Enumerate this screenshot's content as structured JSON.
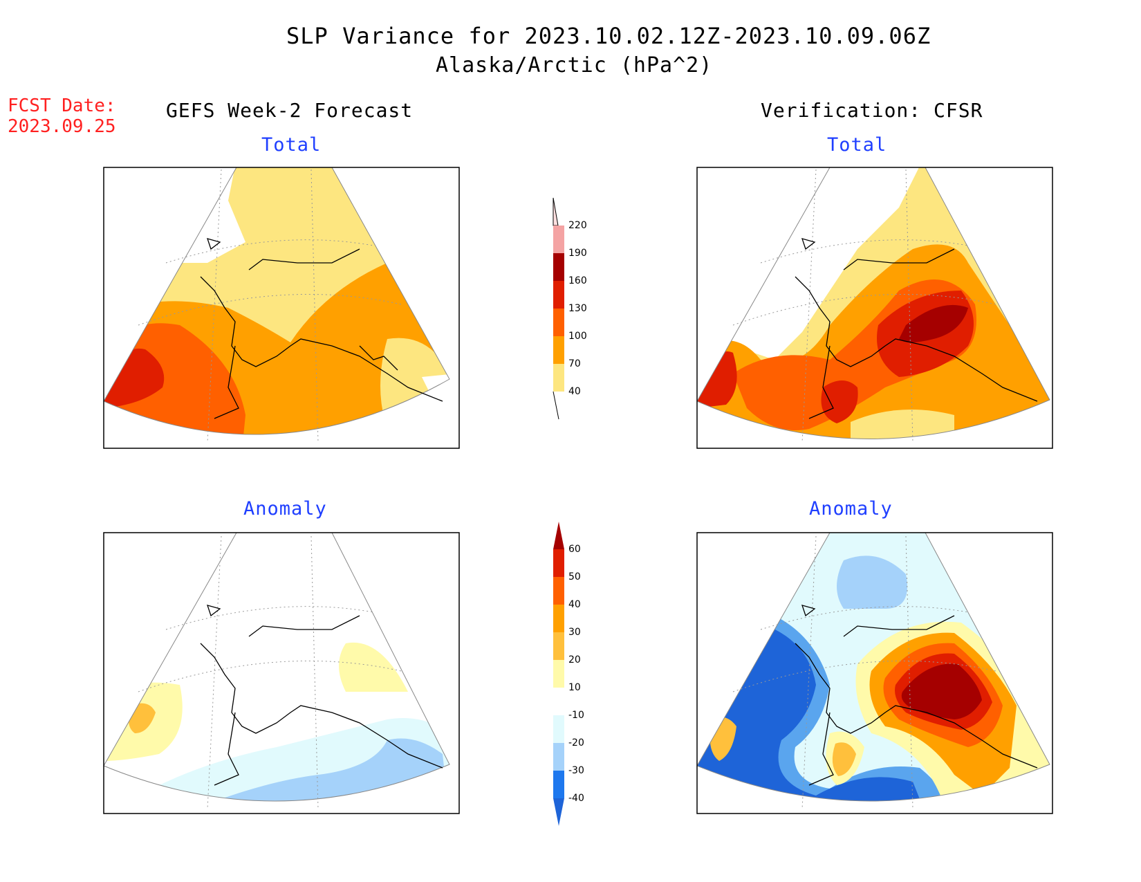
{
  "header": {
    "title": "SLP Variance for 2023.10.02.12Z-2023.10.09.06Z",
    "subtitle": "Alaska/Arctic (hPa^2)",
    "fcst_date_label": "FCST Date:",
    "fcst_date_value": "2023.09.25"
  },
  "columns": {
    "left": "GEFS Week-2 Forecast",
    "right": "Verification: CFSR"
  },
  "panels": {
    "top_left": "Total",
    "top_right": "Total",
    "bottom_left": "Anomaly",
    "bottom_right": "Anomaly"
  },
  "colorbars": {
    "total": {
      "ticks": [
        "40",
        "70",
        "100",
        "130",
        "160",
        "190",
        "220"
      ],
      "colors": [
        "#fde680",
        "#ffa000",
        "#ff6000",
        "#e01e00",
        "#a50000",
        "#f4a3a3",
        "#ffe0e0"
      ]
    },
    "anomaly": {
      "ticks": [
        "-40",
        "-30",
        "-20",
        "-10",
        "10",
        "20",
        "30",
        "40",
        "50",
        "60"
      ],
      "colors": [
        "#1e64d8",
        "#1e78ee",
        "#5aa5ee",
        "#a5d2fa",
        "#e1fafd",
        "#ffffff",
        "#fffaaa",
        "#ffc03c",
        "#ffa000",
        "#ff6000",
        "#e01e00",
        "#a50000"
      ]
    }
  },
  "colors": {
    "fcst_text": "#ff2020",
    "panel_title": "#1f3fff",
    "map_border": "#000000",
    "grid": "#999999"
  }
}
